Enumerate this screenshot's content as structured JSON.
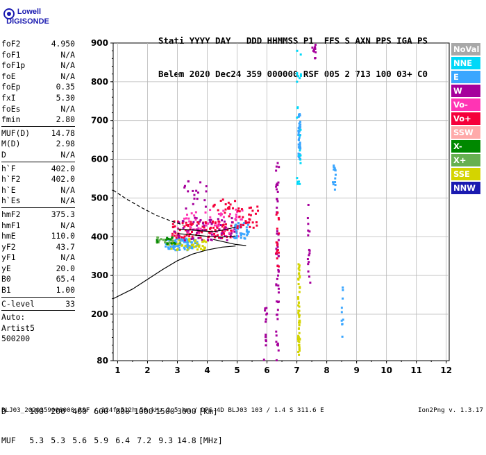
{
  "logo": {
    "line1": "Lowell",
    "line2": "DIGISONDE"
  },
  "header": {
    "labels": "Stati YYYY DAY   DDD HHMMSS P1  FFS S AXN PPS IGA PS",
    "values": "Belem 2020 Dec24 359 000000 RSF 005 2 713 100 03+ C0"
  },
  "params": [
    {
      "name": "foF2",
      "value": "4.950"
    },
    {
      "name": "foF1",
      "value": "N/A"
    },
    {
      "name": "foF1p",
      "value": "N/A"
    },
    {
      "name": "foE",
      "value": "N/A"
    },
    {
      "name": "foEp",
      "value": "0.35"
    },
    {
      "name": "fxI",
      "value": "5.30"
    },
    {
      "name": "foEs",
      "value": "N/A"
    },
    {
      "name": "fmin",
      "value": "2.80"
    },
    {
      "sep": true
    },
    {
      "name": "MUF(D)",
      "value": "14.78"
    },
    {
      "name": "M(D)",
      "value": "2.98"
    },
    {
      "name": "D",
      "value": "N/A"
    },
    {
      "sep": true
    },
    {
      "name": "h`F",
      "value": "402.0"
    },
    {
      "name": "h`F2",
      "value": "402.0"
    },
    {
      "name": "h`E",
      "value": "N/A"
    },
    {
      "name": "h`Es",
      "value": "N/A"
    },
    {
      "sep": true
    },
    {
      "name": "hmF2",
      "value": "375.3"
    },
    {
      "name": "hmF1",
      "value": "N/A"
    },
    {
      "name": "hmE",
      "value": "110.0"
    },
    {
      "name": "yF2",
      "value": "43.7"
    },
    {
      "name": "yF1",
      "value": "N/A"
    },
    {
      "name": "yE",
      "value": "20.0"
    },
    {
      "name": "B0",
      "value": "65.4"
    },
    {
      "name": "B1",
      "value": "1.00"
    },
    {
      "sep": true
    },
    {
      "name": "C-level",
      "value": "33"
    },
    {
      "sep": true
    }
  ],
  "autoscaling": [
    "Auto:",
    "Artist5",
    "500200"
  ],
  "legend": [
    {
      "label": "NoVal",
      "color": "#a8a8a8"
    },
    {
      "label": "NNE",
      "color": "#00d8f8"
    },
    {
      "label": "E",
      "color": "#3aa6ff"
    },
    {
      "label": "W",
      "color": "#a6009c"
    },
    {
      "label": "Vo-",
      "color": "#ff34b4"
    },
    {
      "label": "Vo+",
      "color": "#f5003a"
    },
    {
      "label": "SSW",
      "color": "#ffaaaa"
    },
    {
      "label": "X-",
      "color": "#008800"
    },
    {
      "label": "X+",
      "color": "#66b050"
    },
    {
      "label": "SSE",
      "color": "#d4d400"
    },
    {
      "label": "NNW",
      "color": "#1a1ab0"
    }
  ],
  "footer": {
    "d_label": "D",
    "d_values": [
      "100",
      "200",
      "400",
      "600",
      "800",
      "1000",
      "1500",
      "3000"
    ],
    "d_unit": "[km]",
    "muf_label": "MUF",
    "muf_values": [
      "5.3",
      "5.3",
      "5.6",
      "5.9",
      "6.4",
      "7.2",
      "9.3",
      "14.8"
    ],
    "muf_unit": "[MHz]",
    "source": "BLJ03_2020359000000.RSF / 224fx512h 50 kHz 2.5 km / DPS-4D BLJ03 103 / 1.4 S 311.6 E",
    "version": "Ion2Png v. 1.3.17"
  },
  "chart_data": {
    "type": "scatter",
    "title": "",
    "xlabel": "",
    "ylabel": "",
    "xlim": [
      0.85,
      12.1
    ],
    "ylim": [
      80,
      900
    ],
    "x_ticks": [
      1,
      2,
      3,
      4,
      5,
      6,
      7,
      8,
      9,
      10,
      11,
      12
    ],
    "y_ticks": [
      80,
      200,
      300,
      400,
      500,
      600,
      700,
      800,
      900
    ],
    "grid": true,
    "curves": [
      {
        "name": "true-height-profile",
        "style": "solid",
        "x": [
          0.85,
          1.5,
          2.0,
          2.5,
          3.0,
          3.5,
          4.0,
          4.5,
          4.95
        ],
        "y": [
          240,
          265,
          290,
          315,
          338,
          355,
          366,
          373,
          376
        ]
      },
      {
        "name": "e-region-profile",
        "style": "solid",
        "x": [
          3.0,
          3.5,
          4.0,
          4.5,
          4.95
        ],
        "y": [
          408,
          405,
          401,
          399,
          402
        ]
      },
      {
        "name": "f-trace-model-solid",
        "style": "solid",
        "x": [
          3.0,
          3.4,
          3.8,
          4.2,
          4.6,
          4.95
        ],
        "y": [
          420,
          418,
          415,
          413,
          418,
          425
        ]
      },
      {
        "name": "f-extrapolation",
        "style": "dashed",
        "x": [
          0.85,
          1.3,
          1.8,
          2.3,
          2.8,
          3.2
        ],
        "y": [
          520,
          497,
          475,
          455,
          440,
          430
        ]
      },
      {
        "name": "x-trace-model",
        "style": "solid",
        "x": [
          4.2,
          4.6,
          4.95,
          5.3
        ],
        "y": [
          393,
          386,
          380,
          377
        ]
      }
    ],
    "clusters": [
      {
        "color": "#3aa6ff",
        "xr": [
          2.6,
          3.7
        ],
        "yr": [
          365,
          395
        ],
        "n": 90
      },
      {
        "color": "#f5003a",
        "xr": [
          2.8,
          5.0
        ],
        "yr": [
          395,
          440
        ],
        "n": 110
      },
      {
        "color": "#a6009c",
        "xr": [
          2.9,
          5.0
        ],
        "yr": [
          390,
          450
        ],
        "n": 60
      },
      {
        "color": "#ff34b4",
        "xr": [
          3.0,
          5.2
        ],
        "yr": [
          400,
          470
        ],
        "n": 55
      },
      {
        "color": "#d4d400",
        "xr": [
          2.7,
          4.0
        ],
        "yr": [
          365,
          395
        ],
        "n": 40
      },
      {
        "color": "#66b050",
        "xr": [
          2.3,
          3.2
        ],
        "yr": [
          380,
          400
        ],
        "n": 22
      },
      {
        "color": "#008800",
        "xr": [
          2.3,
          3.0
        ],
        "yr": [
          380,
          400
        ],
        "n": 12
      },
      {
        "color": "#3aa6ff",
        "xr": [
          4.9,
          5.4
        ],
        "yr": [
          395,
          440
        ],
        "n": 40
      },
      {
        "color": "#f5003a",
        "xr": [
          5.0,
          5.7
        ],
        "yr": [
          420,
          480
        ],
        "n": 30
      },
      {
        "color": "#a6009c",
        "xr": [
          3.2,
          4.0
        ],
        "yr": [
          470,
          545
        ],
        "n": 18
      },
      {
        "color": "#f5003a",
        "xr": [
          4.2,
          5.0
        ],
        "yr": [
          450,
          500
        ],
        "n": 18
      },
      {
        "color": "#a6009c",
        "xr": [
          6.3,
          6.4
        ],
        "yr": [
          80,
          610
        ],
        "n": 55
      },
      {
        "color": "#f5003a",
        "xr": [
          6.3,
          6.4
        ],
        "yr": [
          310,
          480
        ],
        "n": 16
      },
      {
        "color": "#3aa6ff",
        "xr": [
          7.05,
          7.12
        ],
        "yr": [
          600,
          720
        ],
        "n": 40
      },
      {
        "color": "#00d8f8",
        "xr": [
          7.0,
          7.15
        ],
        "yr": [
          530,
          900
        ],
        "n": 25
      },
      {
        "color": "#d4d400",
        "xr": [
          7.04,
          7.1
        ],
        "yr": [
          95,
          330
        ],
        "n": 55
      },
      {
        "color": "#a6009c",
        "xr": [
          7.5,
          7.65
        ],
        "yr": [
          860,
          900
        ],
        "n": 12
      },
      {
        "color": "#3aa6ff",
        "xr": [
          8.2,
          8.3
        ],
        "yr": [
          520,
          590
        ],
        "n": 14
      },
      {
        "color": "#3aa6ff",
        "xr": [
          8.5,
          8.55
        ],
        "yr": [
          130,
          300
        ],
        "n": 10
      },
      {
        "color": "#a6009c",
        "xr": [
          5.9,
          6.0
        ],
        "yr": [
          80,
          230
        ],
        "n": 14
      },
      {
        "color": "#a6009c",
        "xr": [
          7.35,
          7.45
        ],
        "yr": [
          280,
          500
        ],
        "n": 16
      }
    ]
  }
}
